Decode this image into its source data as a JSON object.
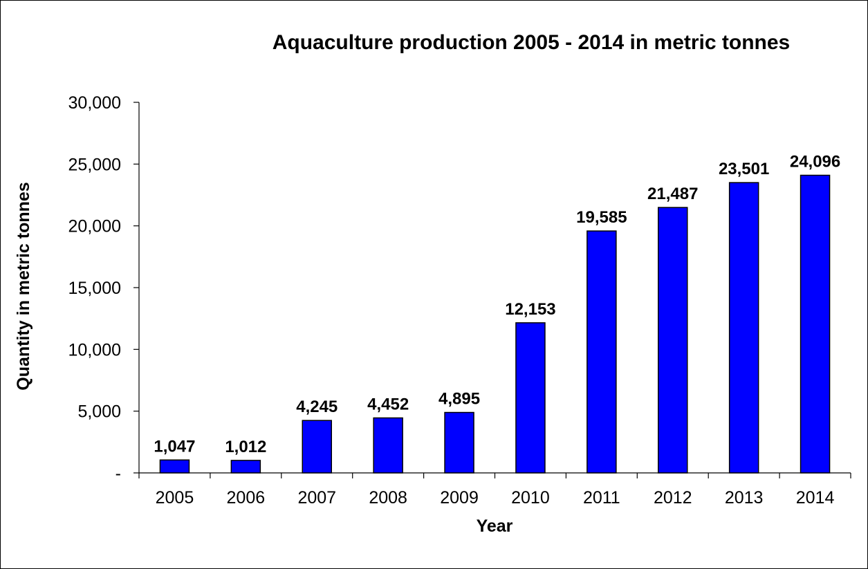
{
  "chart_data": {
    "type": "bar",
    "title": "Aquaculture production 2005 - 2014 in metric tonnes",
    "xlabel": "Year",
    "ylabel": "Quantity in metric tonnes",
    "categories": [
      "2005",
      "2006",
      "2007",
      "2008",
      "2009",
      "2010",
      "2011",
      "2012",
      "2013",
      "2014"
    ],
    "values": [
      1047,
      1012,
      4245,
      4452,
      4895,
      12153,
      19585,
      21487,
      23501,
      24096
    ],
    "data_labels": [
      "1,047",
      "1,012",
      "4,245",
      "4,452",
      "4,895",
      "12,153",
      "19,585",
      "21,487",
      "23,501",
      "24,096"
    ],
    "ylim": [
      0,
      30000
    ],
    "yticks": [
      0,
      5000,
      10000,
      15000,
      20000,
      25000,
      30000
    ],
    "ytick_labels": [
      "-",
      "5,000",
      "10,000",
      "15,000",
      "20,000",
      "25,000",
      "30,000"
    ],
    "grid": false,
    "legend": "none",
    "bar_color": "#0000ff",
    "bar_edge_color": "#000000"
  }
}
